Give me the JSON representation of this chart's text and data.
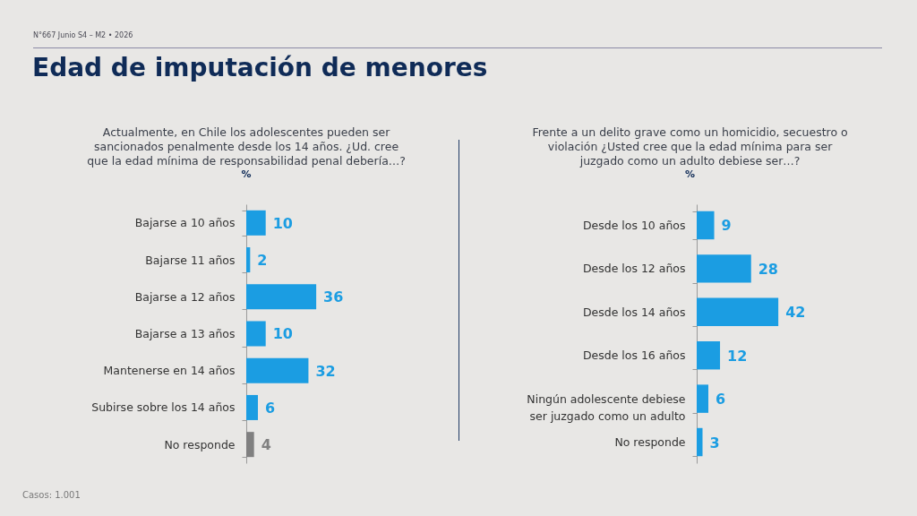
{
  "chart_data": [
    {
      "type": "other",
      "title": "Edad de imputación de menores",
      "subtitle": "N°667 Junio S4 – M2 • 2026",
      "annotations": [
        "Casos: 1.001"
      ]
    },
    {
      "type": "bar",
      "orientation": "horizontal",
      "title": "Actualmente, en Chile los adolescentes pueden ser sancionados penalmente desde los 14 años. ¿Ud. cree que la edad mínima de responsabilidad penal debería…?",
      "subtitle": "%",
      "categories": [
        "Bajarse a 10 años",
        "Bajarse 11 años",
        "Bajarse a 12 años",
        "Bajarse a 13 años",
        "Mantenerse en 14 años",
        "Subirse sobre los 14 años",
        "No responde"
      ],
      "values": [
        10,
        2,
        36,
        10,
        32,
        6,
        4
      ],
      "colors": [
        "#1b9de2",
        "#1b9de2",
        "#1b9de2",
        "#1b9de2",
        "#1b9de2",
        "#1b9de2",
        "#808080"
      ],
      "data_labels": true
    },
    {
      "type": "bar",
      "orientation": "horizontal",
      "title": "Frente a un delito grave como un homicidio, secuestro o violación ¿Usted cree que la edad mínima para ser juzgado como un adulto debiese ser…?",
      "subtitle": "%",
      "categories": [
        "Desde los 10 años",
        "Desde los 12 años",
        "Desde los 14 años",
        "Desde los 16 años",
        "Ningún adolescente debiese ser juzgado como un adulto",
        "No responde"
      ],
      "values": [
        9,
        28,
        42,
        12,
        6,
        3
      ],
      "colors": [
        "#1b9de2",
        "#1b9de2",
        "#1b9de2",
        "#1b9de2",
        "#1b9de2",
        "#1b9de2"
      ],
      "data_labels": true
    }
  ]
}
